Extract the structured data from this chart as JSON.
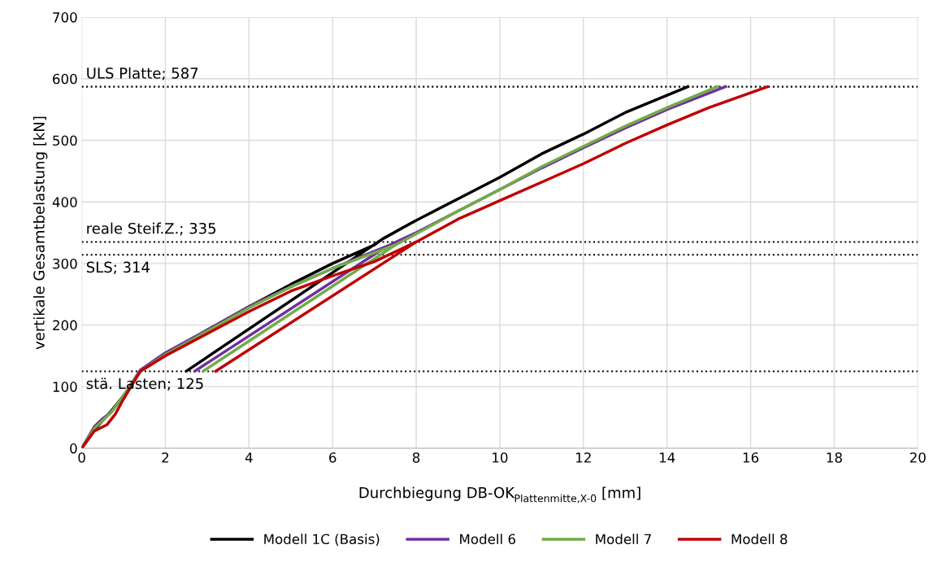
{
  "chart_data": {
    "type": "line",
    "xlabel": "Durchbiegung DB-OK$_{Plattenmitte,X-0}$ [mm]",
    "ylabel": "vertikale Gesamtbelastung [kN]",
    "xlim": [
      0,
      20
    ],
    "xticks": [
      0,
      2,
      4,
      6,
      8,
      10,
      12,
      14,
      16,
      18,
      20
    ],
    "ylim": [
      0,
      700
    ],
    "yticks": [
      0,
      100,
      200,
      300,
      400,
      500,
      600,
      700
    ],
    "grid": true,
    "legend": "bottom",
    "line_style": "solid",
    "marker": "none",
    "series": [
      {
        "name": "Modell 1C (Basis)",
        "color": "#000000",
        "x": [
          0,
          0.3,
          0.5,
          0.7,
          1.0,
          1.4,
          2,
          3,
          4,
          5,
          6,
          7,
          7.2,
          2.5,
          7.2,
          8,
          9,
          10,
          11,
          12,
          13,
          14.5
        ],
        "values": [
          0,
          30,
          45,
          60,
          85,
          125,
          152,
          192,
          230,
          266,
          300,
          330,
          340,
          125,
          340,
          370,
          405,
          440,
          478,
          510,
          545,
          587
        ]
      },
      {
        "name": "Modell 6",
        "color": "#7030a0",
        "x": [
          0,
          0.3,
          0.5,
          0.7,
          1.0,
          1.4,
          2,
          3,
          4,
          5,
          6,
          7.3,
          2.7,
          7.3,
          8,
          9,
          10,
          11,
          12,
          13,
          14,
          15.4
        ],
        "values": [
          0,
          35,
          48,
          58,
          85,
          127,
          155,
          192,
          230,
          262,
          292,
          328,
          125,
          328,
          350,
          385,
          420,
          455,
          488,
          520,
          550,
          587
        ]
      },
      {
        "name": "Modell 7",
        "color": "#70ad47",
        "x": [
          0,
          0.3,
          0.5,
          0.7,
          1.0,
          1.4,
          2,
          3,
          4,
          5,
          6,
          7.5,
          2.9,
          7.5,
          8,
          9,
          10,
          11,
          12,
          13,
          14,
          15.2
        ],
        "values": [
          0,
          32,
          45,
          58,
          85,
          125,
          152,
          190,
          228,
          262,
          292,
          330,
          125,
          330,
          348,
          385,
          420,
          457,
          490,
          523,
          553,
          587
        ]
      },
      {
        "name": "Modell 8",
        "color": "#c00000",
        "x": [
          0,
          0.3,
          0.6,
          0.8,
          1.0,
          1.4,
          2,
          3,
          4,
          5,
          6,
          7,
          8,
          3.2,
          8,
          9,
          10,
          11,
          12,
          13,
          14,
          15,
          16.4
        ],
        "values": [
          0,
          28,
          38,
          55,
          80,
          125,
          150,
          186,
          222,
          255,
          280,
          303,
          335,
          125,
          335,
          372,
          402,
          432,
          462,
          495,
          525,
          553,
          587
        ]
      }
    ],
    "ref_lines": [
      {
        "axis": "y",
        "value": 587,
        "label": "ULS Platte; 587",
        "color": "#000000",
        "line_style": "dotted"
      },
      {
        "axis": "y",
        "value": 335,
        "label": "reale Steif.Z.; 335",
        "color": "#000000",
        "line_style": "dotted"
      },
      {
        "axis": "y",
        "value": 314,
        "label": "SLS; 314",
        "color": "#000000",
        "line_style": "dotted"
      },
      {
        "axis": "y",
        "value": 125,
        "label": "stä. Lasten; 125",
        "color": "#000000",
        "line_style": "dotted"
      }
    ]
  }
}
